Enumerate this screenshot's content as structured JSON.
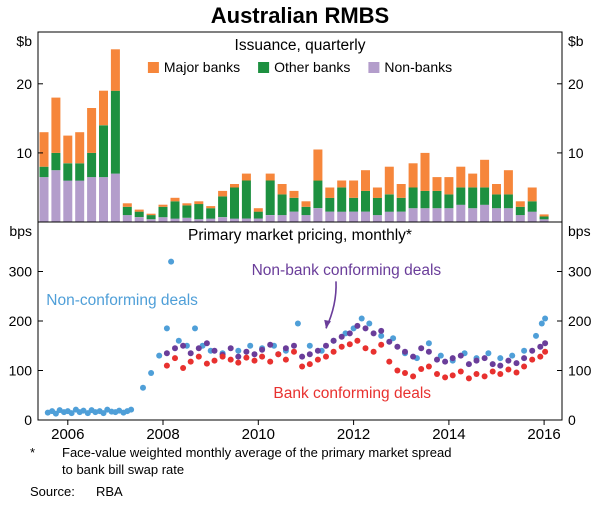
{
  "title": "Australian RMBS",
  "colors": {
    "major": "#f6863b",
    "other": "#1d9040",
    "nonbank": "#b39dcb",
    "nonconf": "#4f9fd8",
    "nonbankconf": "#6a3d9a",
    "bankconf": "#e8312f"
  },
  "xaxis": {
    "range": [
      2005.375,
      2016.375
    ],
    "ticks": [
      2006,
      2008,
      2010,
      2012,
      2014,
      2016
    ]
  },
  "chart_data": [
    {
      "type": "bar",
      "stacked": true,
      "title": "Issuance, quarterly",
      "unit": "$b",
      "ylim": [
        0,
        27.5
      ],
      "yticks": [
        10,
        20
      ],
      "x": [
        2005.5,
        2005.75,
        2006,
        2006.25,
        2006.5,
        2006.75,
        2007,
        2007.25,
        2007.5,
        2007.75,
        2008,
        2008.25,
        2008.5,
        2008.75,
        2009,
        2009.25,
        2009.5,
        2009.75,
        2010,
        2010.25,
        2010.5,
        2010.75,
        2011,
        2011.25,
        2011.5,
        2011.75,
        2012,
        2012.25,
        2012.5,
        2012.75,
        2013,
        2013.25,
        2013.5,
        2013.75,
        2014,
        2014.25,
        2014.5,
        2014.75,
        2015,
        2015.25,
        2015.5,
        2015.75,
        2016
      ],
      "series": [
        {
          "name": "Major banks",
          "color_key": "major",
          "values": [
            5,
            8,
            4,
            4.5,
            6.5,
            5,
            6,
            0.5,
            0.3,
            0.2,
            0.3,
            0.5,
            0.3,
            0.4,
            0.3,
            0.8,
            0.5,
            1,
            0.5,
            1,
            1.5,
            1,
            0.8,
            4.5,
            1.5,
            1,
            2.5,
            3,
            1.5,
            4,
            2,
            3.5,
            5.5,
            2,
            2.5,
            3,
            2,
            4,
            1.5,
            3.5,
            0.8,
            2,
            0.3
          ]
        },
        {
          "name": "Other banks",
          "color_key": "other",
          "values": [
            1.5,
            2.5,
            2.5,
            2.5,
            3.5,
            7.5,
            12,
            1.2,
            0.8,
            0.6,
            1.5,
            2.5,
            1.8,
            2.2,
            1.5,
            3,
            4.5,
            5.5,
            1,
            5,
            3,
            2,
            1.2,
            4,
            2,
            3.5,
            2,
            3,
            2.5,
            2.5,
            2,
            3,
            2.5,
            2.5,
            2,
            2.5,
            3,
            2.5,
            2,
            2,
            1.2,
            1.5,
            0.4
          ]
        },
        {
          "name": "Non-banks",
          "color_key": "nonbank",
          "values": [
            6.5,
            7.5,
            6,
            6,
            6.5,
            6.5,
            7,
            1,
            0.7,
            0.4,
            0.7,
            0.5,
            0.6,
            0.4,
            0.5,
            0.7,
            0.5,
            0.5,
            0.5,
            1,
            1,
            1.5,
            1,
            2,
            1.5,
            1.5,
            1.5,
            1.5,
            1,
            1.5,
            1.5,
            2,
            2,
            2,
            2,
            2.5,
            2,
            2.5,
            2,
            2,
            1,
            1.5,
            0.4
          ]
        }
      ]
    },
    {
      "type": "scatter",
      "title": "Primary market pricing, monthly*",
      "unit": "bps",
      "ylim": [
        0,
        400
      ],
      "yticks": [
        0,
        100,
        200,
        300
      ],
      "series": [
        {
          "name": "Non-conforming deals",
          "color_key": "nonconf",
          "points": [
            [
              2005.58,
              15
            ],
            [
              2005.67,
              18
            ],
            [
              2005.75,
              13
            ],
            [
              2005.83,
              20
            ],
            [
              2005.92,
              16
            ],
            [
              2006.0,
              18
            ],
            [
              2006.08,
              14
            ],
            [
              2006.17,
              21
            ],
            [
              2006.25,
              16
            ],
            [
              2006.33,
              19
            ],
            [
              2006.42,
              14
            ],
            [
              2006.5,
              20
            ],
            [
              2006.58,
              16
            ],
            [
              2006.67,
              18
            ],
            [
              2006.75,
              14
            ],
            [
              2006.83,
              21
            ],
            [
              2006.92,
              17
            ],
            [
              2007.0,
              16
            ],
            [
              2007.08,
              19
            ],
            [
              2007.17,
              15
            ],
            [
              2007.25,
              18
            ],
            [
              2007.33,
              21
            ],
            [
              2007.58,
              65
            ],
            [
              2007.75,
              95
            ],
            [
              2007.92,
              130
            ],
            [
              2008.08,
              185
            ],
            [
              2008.17,
              320
            ],
            [
              2008.33,
              160
            ],
            [
              2008.5,
              150
            ],
            [
              2008.67,
              185
            ],
            [
              2008.83,
              150
            ],
            [
              2009.0,
              140
            ],
            [
              2009.25,
              135
            ],
            [
              2009.58,
              140
            ],
            [
              2009.83,
              150
            ],
            [
              2010.08,
              145
            ],
            [
              2010.33,
              150
            ],
            [
              2010.58,
              140
            ],
            [
              2010.83,
              195
            ],
            [
              2011.08,
              150
            ],
            [
              2011.33,
              140
            ],
            [
              2011.58,
              160
            ],
            [
              2011.83,
              175
            ],
            [
              2012.0,
              185
            ],
            [
              2012.17,
              205
            ],
            [
              2012.33,
              195
            ],
            [
              2012.58,
              170
            ],
            [
              2012.83,
              165
            ],
            [
              2013.08,
              135
            ],
            [
              2013.33,
              125
            ],
            [
              2013.58,
              155
            ],
            [
              2013.83,
              130
            ],
            [
              2014.08,
              120
            ],
            [
              2014.33,
              135
            ],
            [
              2014.58,
              125
            ],
            [
              2014.83,
              135
            ],
            [
              2015.08,
              125
            ],
            [
              2015.33,
              130
            ],
            [
              2015.58,
              140
            ],
            [
              2015.83,
              170
            ],
            [
              2015.95,
              195
            ],
            [
              2016.02,
              205
            ]
          ]
        },
        {
          "name": "Non-bank conforming deals",
          "color_key": "nonbankconf",
          "points": [
            [
              2008.08,
              135
            ],
            [
              2008.25,
              145
            ],
            [
              2008.42,
              150
            ],
            [
              2008.58,
              135
            ],
            [
              2008.75,
              145
            ],
            [
              2008.92,
              155
            ],
            [
              2009.08,
              140
            ],
            [
              2009.25,
              132
            ],
            [
              2009.42,
              145
            ],
            [
              2009.58,
              128
            ],
            [
              2009.75,
              138
            ],
            [
              2009.92,
              133
            ],
            [
              2010.08,
              142
            ],
            [
              2010.25,
              152
            ],
            [
              2010.42,
              133
            ],
            [
              2010.58,
              145
            ],
            [
              2010.75,
              150
            ],
            [
              2010.92,
              128
            ],
            [
              2011.08,
              133
            ],
            [
              2011.25,
              140
            ],
            [
              2011.42,
              150
            ],
            [
              2011.58,
              160
            ],
            [
              2011.75,
              168
            ],
            [
              2011.92,
              175
            ],
            [
              2012.08,
              190
            ],
            [
              2012.25,
              185
            ],
            [
              2012.42,
              175
            ],
            [
              2012.58,
              180
            ],
            [
              2012.75,
              158
            ],
            [
              2012.92,
              148
            ],
            [
              2013.08,
              138
            ],
            [
              2013.25,
              128
            ],
            [
              2013.42,
              145
            ],
            [
              2013.58,
              138
            ],
            [
              2013.75,
              122
            ],
            [
              2013.92,
              118
            ],
            [
              2014.08,
              125
            ],
            [
              2014.25,
              130
            ],
            [
              2014.42,
              113
            ],
            [
              2014.58,
              120
            ],
            [
              2014.75,
              125
            ],
            [
              2014.92,
              113
            ],
            [
              2015.08,
              110
            ],
            [
              2015.25,
              120
            ],
            [
              2015.42,
              115
            ],
            [
              2015.58,
              125
            ],
            [
              2015.75,
              140
            ],
            [
              2015.92,
              148
            ],
            [
              2016.02,
              155
            ]
          ]
        },
        {
          "name": "Bank conforming deals",
          "color_key": "bankconf",
          "points": [
            [
              2008.08,
              110
            ],
            [
              2008.25,
              125
            ],
            [
              2008.42,
              105
            ],
            [
              2008.58,
              118
            ],
            [
              2008.75,
              128
            ],
            [
              2008.92,
              114
            ],
            [
              2009.08,
              120
            ],
            [
              2009.25,
              128
            ],
            [
              2009.42,
              122
            ],
            [
              2009.58,
              116
            ],
            [
              2009.75,
              126
            ],
            [
              2009.92,
              120
            ],
            [
              2010.08,
              128
            ],
            [
              2010.25,
              118
            ],
            [
              2010.42,
              133
            ],
            [
              2010.58,
              122
            ],
            [
              2010.75,
              138
            ],
            [
              2010.92,
              108
            ],
            [
              2011.08,
              113
            ],
            [
              2011.25,
              122
            ],
            [
              2011.42,
              128
            ],
            [
              2011.58,
              138
            ],
            [
              2011.75,
              148
            ],
            [
              2011.92,
              153
            ],
            [
              2012.08,
              160
            ],
            [
              2012.25,
              145
            ],
            [
              2012.42,
              138
            ],
            [
              2012.58,
              152
            ],
            [
              2012.75,
              118
            ],
            [
              2012.92,
              100
            ],
            [
              2013.08,
              95
            ],
            [
              2013.25,
              88
            ],
            [
              2013.42,
              103
            ],
            [
              2013.58,
              108
            ],
            [
              2013.75,
              93
            ],
            [
              2013.92,
              86
            ],
            [
              2014.08,
              90
            ],
            [
              2014.25,
              98
            ],
            [
              2014.42,
              84
            ],
            [
              2014.58,
              93
            ],
            [
              2014.75,
              88
            ],
            [
              2014.92,
              98
            ],
            [
              2015.08,
              93
            ],
            [
              2015.25,
              102
            ],
            [
              2015.42,
              96
            ],
            [
              2015.58,
              108
            ],
            [
              2015.75,
              122
            ],
            [
              2015.92,
              128
            ],
            [
              2016.02,
              138
            ]
          ]
        }
      ],
      "annotations": [
        {
          "text": "Non-conforming deals",
          "color_key": "nonconf",
          "x": 2005.55,
          "y": 232,
          "anchor": "start"
        },
        {
          "text": "Non-bank conforming deals",
          "color_key": "nonbankconf",
          "x": 2011.85,
          "y": 293,
          "anchor": "middle",
          "arrow": {
            "from": [
              2011.63,
              280
            ],
            "to": [
              2011.42,
              185
            ]
          }
        },
        {
          "text": "Bank conforming deals",
          "color_key": "bankconf",
          "x": 2011.97,
          "y": 44,
          "anchor": "middle"
        }
      ]
    }
  ],
  "footnote": {
    "marker": "*",
    "lines": [
      "Face-value weighted monthly average of the primary market spread",
      "to bank bill swap rate"
    ]
  },
  "source": {
    "label": "Source:",
    "value": "RBA"
  }
}
